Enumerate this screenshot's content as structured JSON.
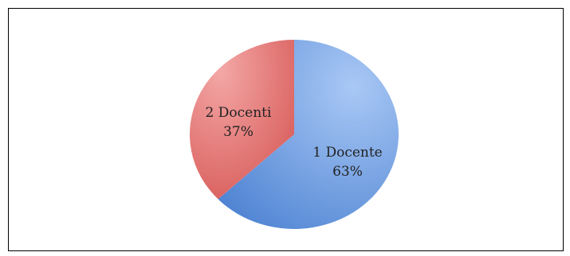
{
  "chart_data": {
    "type": "pie",
    "title": "",
    "slices": [
      {
        "name": "1 Docente",
        "value": 63,
        "label_value": "63%",
        "color": "#5b8fd8"
      },
      {
        "name": "2 Docenti",
        "value": 37,
        "label_value": "37%",
        "color": "#d9605f"
      }
    ],
    "legend": "none",
    "labels_inside": true,
    "start_angle_deg": -90,
    "direction": "clockwise"
  }
}
